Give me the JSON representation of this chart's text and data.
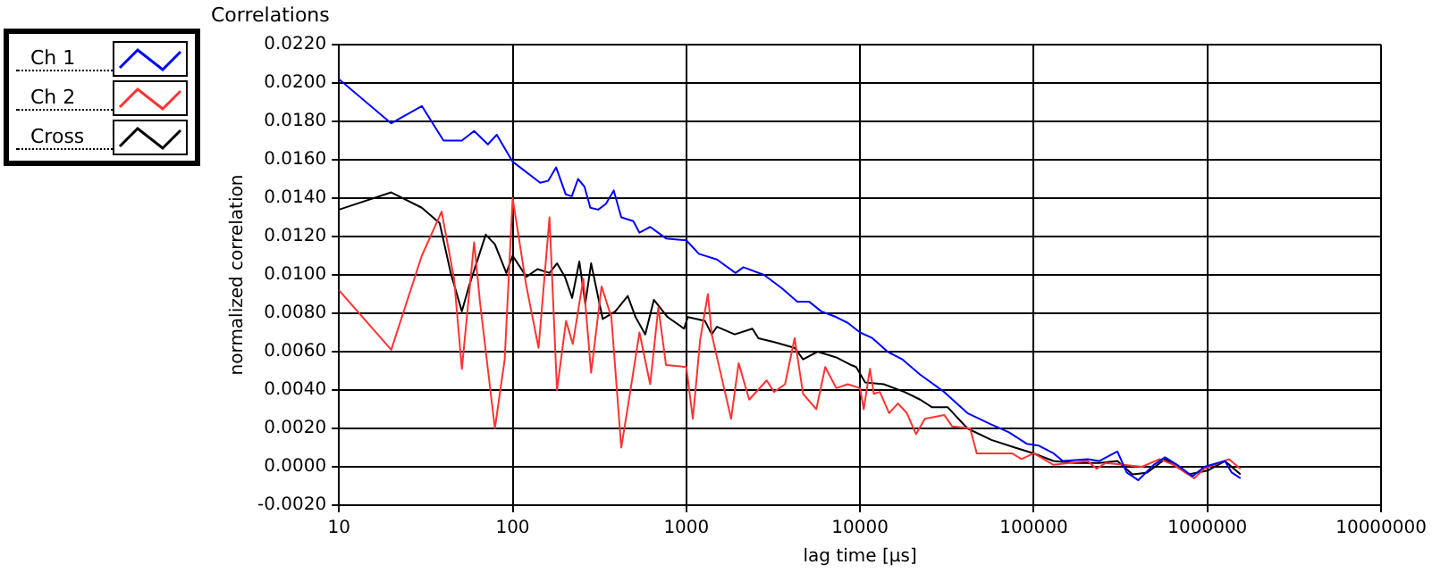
{
  "chart_data": {
    "type": "line",
    "title": "Correlations",
    "xlabel": "lag time [µs]",
    "ylabel": "normalized correlation",
    "log": "x",
    "grid": true,
    "legend": "top left",
    "marker": "none",
    "line_style": "solid",
    "xlim": [
      10,
      10000000
    ],
    "xticks": [
      10,
      100,
      1000,
      10000,
      100000,
      1000000,
      10000000
    ],
    "ylim": [
      -0.002,
      0.022
    ],
    "yticks": [
      {
        "value": -0.002,
        "label": "-0.0020"
      },
      {
        "value": 0,
        "label": "0.0000"
      },
      {
        "value": 0.002,
        "label": "0.0020"
      },
      {
        "value": 0.004,
        "label": "0.0040"
      },
      {
        "value": 0.006,
        "label": "0.0060"
      },
      {
        "value": 0.008,
        "label": "0.0080"
      },
      {
        "value": 0.01,
        "label": "0.0100"
      },
      {
        "value": 0.012,
        "label": "0.0120"
      },
      {
        "value": 0.014,
        "label": "0.0140"
      },
      {
        "value": 0.016,
        "label": "0.0160"
      },
      {
        "value": 0.018,
        "label": "0.0180"
      },
      {
        "value": 0.02,
        "label": "0.0200"
      },
      {
        "value": 0.022,
        "label": "0.0220"
      }
    ],
    "series": [
      {
        "name": "Ch 1",
        "color": "#0000ff",
        "x": [
          10,
          20,
          30,
          40,
          51,
          60,
          72,
          81,
          100,
          144,
          160,
          178,
          202,
          219,
          238,
          259,
          280,
          311,
          344,
          382,
          422,
          495,
          537,
          619,
          764,
          1000,
          1180,
          1500,
          1920,
          2130,
          2800,
          3550,
          4350,
          5100,
          5980,
          7300,
          8500,
          10000,
          11800,
          14400,
          17500,
          22200,
          30500,
          41500,
          57000,
          72000,
          91000,
          107000,
          130000,
          147000,
          204000,
          238000,
          303000,
          343000,
          400000,
          490000,
          570000,
          670000,
          820000,
          960000,
          1260000,
          1380000,
          1550000
        ],
        "values": [
          0.0202,
          0.0179,
          0.0188,
          0.017,
          0.017,
          0.0175,
          0.0168,
          0.0173,
          0.0159,
          0.0148,
          0.0149,
          0.0156,
          0.0142,
          0.0141,
          0.015,
          0.0146,
          0.0135,
          0.0134,
          0.0137,
          0.0144,
          0.013,
          0.0128,
          0.0122,
          0.0125,
          0.0119,
          0.0118,
          0.0111,
          0.0108,
          0.0101,
          0.0104,
          0.01,
          0.0093,
          0.0086,
          0.0086,
          0.0081,
          0.0078,
          0.0075,
          0.007,
          0.0067,
          0.006,
          0.0056,
          0.0048,
          0.0039,
          0.0028,
          0.0022,
          0.0018,
          0.0012,
          0.0011,
          0.0007,
          0.0003,
          0.0004,
          0.0003,
          0.0008,
          -0.0003,
          -0.0007,
          0.0001,
          0.0005,
          0.0001,
          -0.0005,
          0,
          0.0003,
          -0.0003,
          -0.0006
        ]
      },
      {
        "name": "Ch 2",
        "color": "#ff3333",
        "x": [
          10,
          20,
          30,
          39,
          46,
          51,
          60,
          65,
          79,
          90,
          100,
          120,
          141,
          163,
          180,
          203,
          222,
          255,
          283,
          325,
          370,
          422,
          475,
          537,
          619,
          690,
          764,
          1000,
          1090,
          1200,
          1330,
          1400,
          1810,
          2000,
          2300,
          2900,
          3200,
          3700,
          4200,
          4700,
          5600,
          6300,
          7300,
          8500,
          10000,
          10500,
          11400,
          12000,
          13000,
          14700,
          16500,
          18600,
          21000,
          23600,
          30500,
          34000,
          43000,
          47000,
          57000,
          75000,
          85000,
          100000,
          130000,
          160000,
          204000,
          230000,
          260000,
          330000,
          420000,
          530000,
          640000,
          840000,
          960000,
          1330000,
          1550000
        ],
        "values": [
          0.0092,
          0.0061,
          0.011,
          0.0133,
          0.0098,
          0.0051,
          0.0117,
          0.0085,
          0.002,
          0.0056,
          0.014,
          0.0094,
          0.0062,
          0.013,
          0.004,
          0.0076,
          0.0064,
          0.0098,
          0.0049,
          0.0094,
          0.0078,
          0.001,
          0.0039,
          0.007,
          0.0043,
          0.0083,
          0.0053,
          0.0052,
          0.0025,
          0.0066,
          0.009,
          0.0069,
          0.0025,
          0.0054,
          0.0035,
          0.0045,
          0.0039,
          0.0043,
          0.0067,
          0.0038,
          0.003,
          0.0052,
          0.0041,
          0.0043,
          0.0041,
          0.003,
          0.0051,
          0.0038,
          0.0039,
          0.0028,
          0.0033,
          0.0028,
          0.0017,
          0.0025,
          0.0027,
          0.0021,
          0.002,
          0.0007,
          0.0007,
          0.0007,
          0.0004,
          0.0007,
          0.0001,
          0.0002,
          0.0003,
          -0.0001,
          0.0002,
          0.0001,
          0,
          0.0004,
          0.0001,
          -0.0006,
          -0.0001,
          0.0004,
          -0.0001
        ]
      },
      {
        "name": "Cross",
        "color": "#000000",
        "x": [
          10,
          20,
          30,
          38,
          44,
          51,
          56,
          70,
          79,
          92,
          100,
          120,
          139,
          163,
          180,
          200,
          220,
          242,
          262,
          283,
          330,
          390,
          460,
          510,
          580,
          650,
          780,
          970,
          1020,
          1280,
          1400,
          1500,
          1900,
          2400,
          2600,
          3200,
          4200,
          4700,
          5700,
          7300,
          8900,
          9500,
          10700,
          13700,
          18000,
          22200,
          26000,
          32000,
          41500,
          57000,
          78000,
          100000,
          130000,
          172000,
          238000,
          303000,
          370000,
          450000,
          570000,
          780000,
          1000000,
          1260000,
          1550000
        ],
        "values": [
          0.0134,
          0.0143,
          0.0135,
          0.0127,
          0.0101,
          0.0081,
          0.0094,
          0.0121,
          0.0116,
          0.0101,
          0.011,
          0.0099,
          0.0103,
          0.0101,
          0.0106,
          0.0099,
          0.0088,
          0.0107,
          0.0085,
          0.0106,
          0.0077,
          0.0081,
          0.0089,
          0.0078,
          0.0069,
          0.0087,
          0.0078,
          0.0072,
          0.0078,
          0.0076,
          0.0069,
          0.0073,
          0.0069,
          0.0072,
          0.0067,
          0.0065,
          0.0062,
          0.0056,
          0.006,
          0.0057,
          0.0053,
          0.0052,
          0.0044,
          0.0043,
          0.0039,
          0.0035,
          0.0031,
          0.0031,
          0.002,
          0.0014,
          0.001,
          0.0007,
          0.0003,
          0.0002,
          0.0002,
          0.0003,
          -0.0004,
          -0.0003,
          0.0004,
          -0.0004,
          -0.0002,
          0.0003,
          -0.0004
        ]
      }
    ]
  }
}
